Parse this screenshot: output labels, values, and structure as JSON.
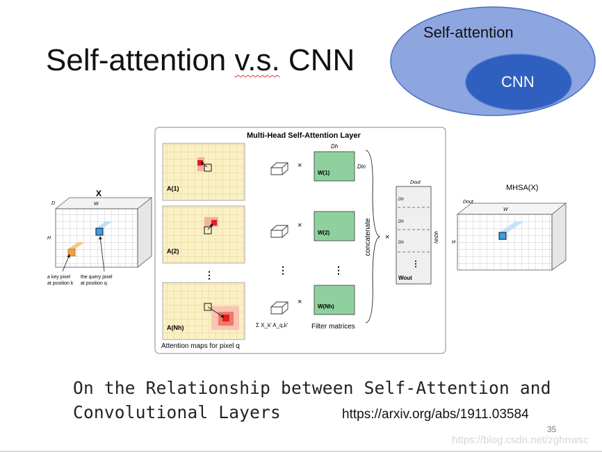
{
  "slide": {
    "title_prefix": "Self-attention ",
    "title_vs": "v.s.",
    "title_suffix": " CNN",
    "paper_title": "On the Relationship between Self-Attention and\nConvolutional Layers",
    "arxiv_url": "https://arxiv.org/abs/1911.03584",
    "page_number": "35",
    "watermark": "https://blog.csdn.net/zghnwsc"
  },
  "venn": {
    "outer_label": "Self-attention",
    "inner_label": "CNN",
    "outer_color": "#8ea6e0",
    "inner_color": "#2f5fbf"
  },
  "diagram": {
    "layer_title": "Multi-Head Self-Attention Layer",
    "input_label": "X",
    "input_dim_d": "D",
    "input_dim_d_sub": "in",
    "input_dim_w": "W",
    "input_dim_h": "H",
    "key_pixel_label_1": "a key pixel",
    "key_pixel_label_2": "at position k",
    "query_pixel_label_1": "the query pixel",
    "query_pixel_label_2": "at position q",
    "head_labels": [
      "A(1)",
      "A(2)",
      "A(Nh)"
    ],
    "attention_maps_label": "Attention maps for pixel q",
    "dh_label": "Dh",
    "din_label": "Din",
    "filter_labels": [
      "W(1)",
      "W(2)",
      "W(Nh)"
    ],
    "filter_matrices_label": "Filter matrices",
    "sum_label": "Σ X_k' A_q,k'",
    "concatenate_label": "concatenate",
    "times": "×",
    "dout_label": "Dout",
    "wout_label": "Wout",
    "nhdh_label": "NhDh",
    "output_label": "MHSA(X)",
    "output_dim_d": "Dout",
    "output_dim_w": "W",
    "output_dim_h": "H",
    "accent_red": "#e02020",
    "accent_blue": "#3aa0e8",
    "filter_green": "#8fd19e",
    "map_bg": "#fbf0c4"
  }
}
